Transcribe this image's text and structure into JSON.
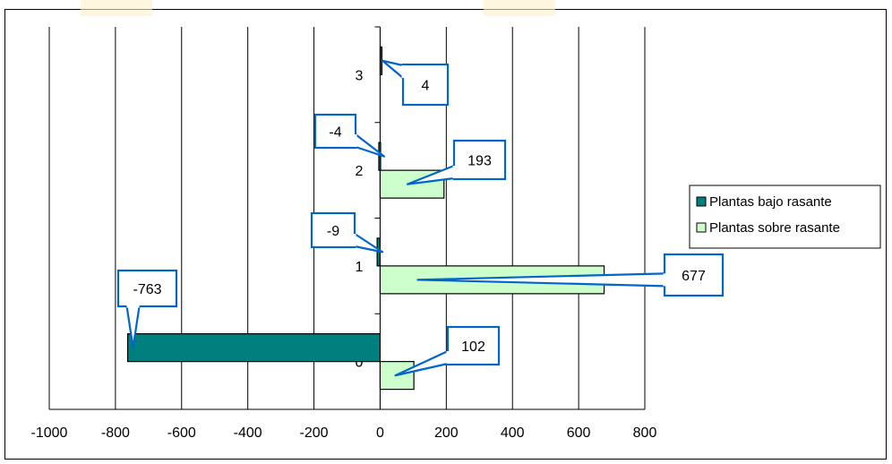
{
  "chart_data": {
    "type": "bar",
    "orientation": "horizontal",
    "categories": [
      "0",
      "1",
      "2",
      "3"
    ],
    "series": [
      {
        "name": "Plantas bajo rasante",
        "values": [
          -763,
          -9,
          -4,
          4
        ],
        "color": "#007f7f"
      },
      {
        "name": "Plantas sobre rasante",
        "values": [
          102,
          677,
          193,
          null
        ],
        "color": "#ccffcc"
      }
    ],
    "data_labels": [
      {
        "series": 0,
        "category": 0,
        "text": "-763"
      },
      {
        "series": 0,
        "category": 1,
        "text": "-9"
      },
      {
        "series": 0,
        "category": 2,
        "text": "-4"
      },
      {
        "series": 0,
        "category": 3,
        "text": "4"
      },
      {
        "series": 1,
        "category": 0,
        "text": "102"
      },
      {
        "series": 1,
        "category": 1,
        "text": "677"
      },
      {
        "series": 1,
        "category": 2,
        "text": "193"
      }
    ],
    "xlim": [
      -1000,
      800
    ],
    "x_ticks": [
      "-1000",
      "-800",
      "-600",
      "-400",
      "-200",
      "0",
      "200",
      "400",
      "600",
      "800"
    ],
    "grid": "vertical",
    "legend_position": "right",
    "callout_border_color": "#0066cc"
  }
}
